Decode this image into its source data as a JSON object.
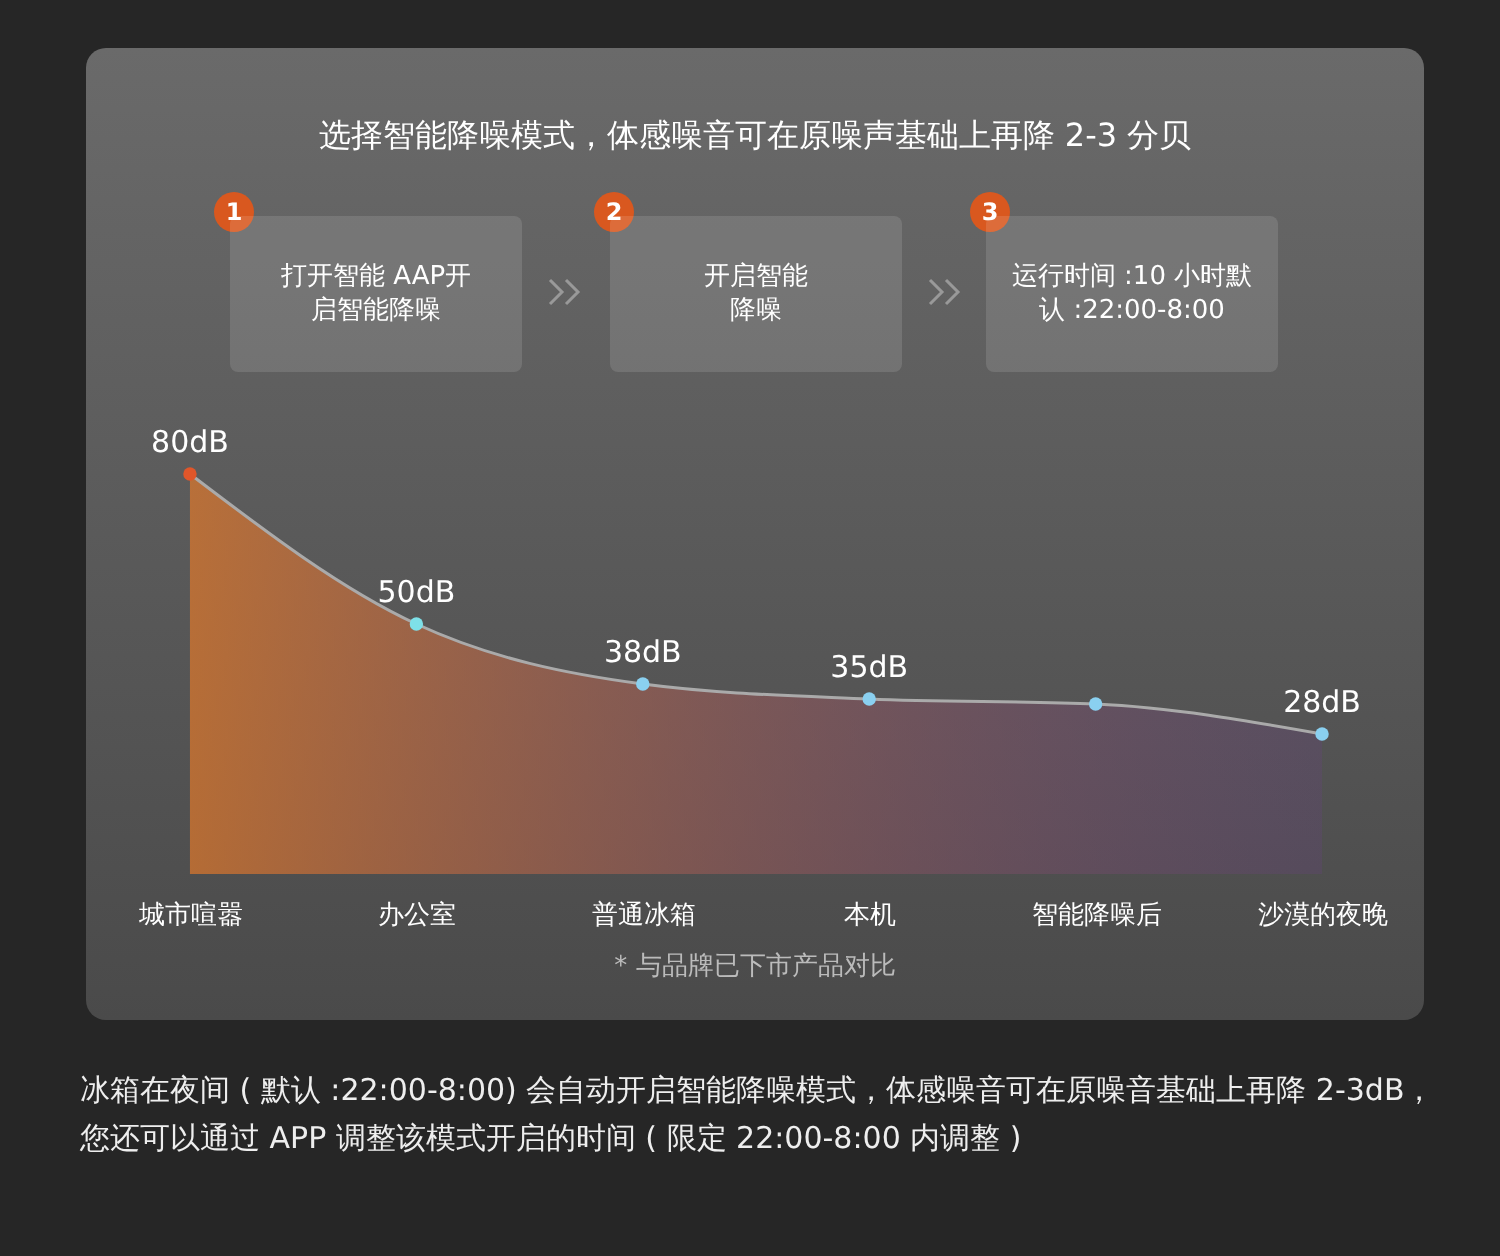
{
  "chart_data": {
    "type": "area",
    "title": "选择智能降噪模式，体感噪音可在原噪声基础上再降 2-3 分贝",
    "categories": [
      "城市喧嚣",
      "办公室",
      "普通冰箱",
      "本机",
      "智能降噪后",
      "沙漠的夜晚"
    ],
    "values": [
      80,
      50,
      38,
      35,
      34,
      28
    ],
    "value_labels": [
      "80dB",
      "50dB",
      "38dB",
      "35dB",
      null,
      "28dB"
    ],
    "color": "#e0782a",
    "colors": [
      "#e0562a",
      "#7ee0e8",
      "#8ad0f0",
      "#8ad0f0",
      "#8ad0f0",
      "#8ad0f0"
    ],
    "marker": "circle",
    "annotations": [
      "1",
      "打开智能 AAP开启智能降噪",
      "2",
      "开启智能降噪",
      "3",
      "运行时间 :10 小时默认 :22:00-8:00",
      "* 与品牌已下市产品对比",
      "冰箱在夜间 ( 默认 :22:00-8:00) 会自动开启智能降噪模式，体感噪音可在原噪音基础上再降 2-3dB，您还可以通过 APP 调整该模式开启的时间 ( 限定 22:00-8:00 内调整 )"
    ]
  }
}
